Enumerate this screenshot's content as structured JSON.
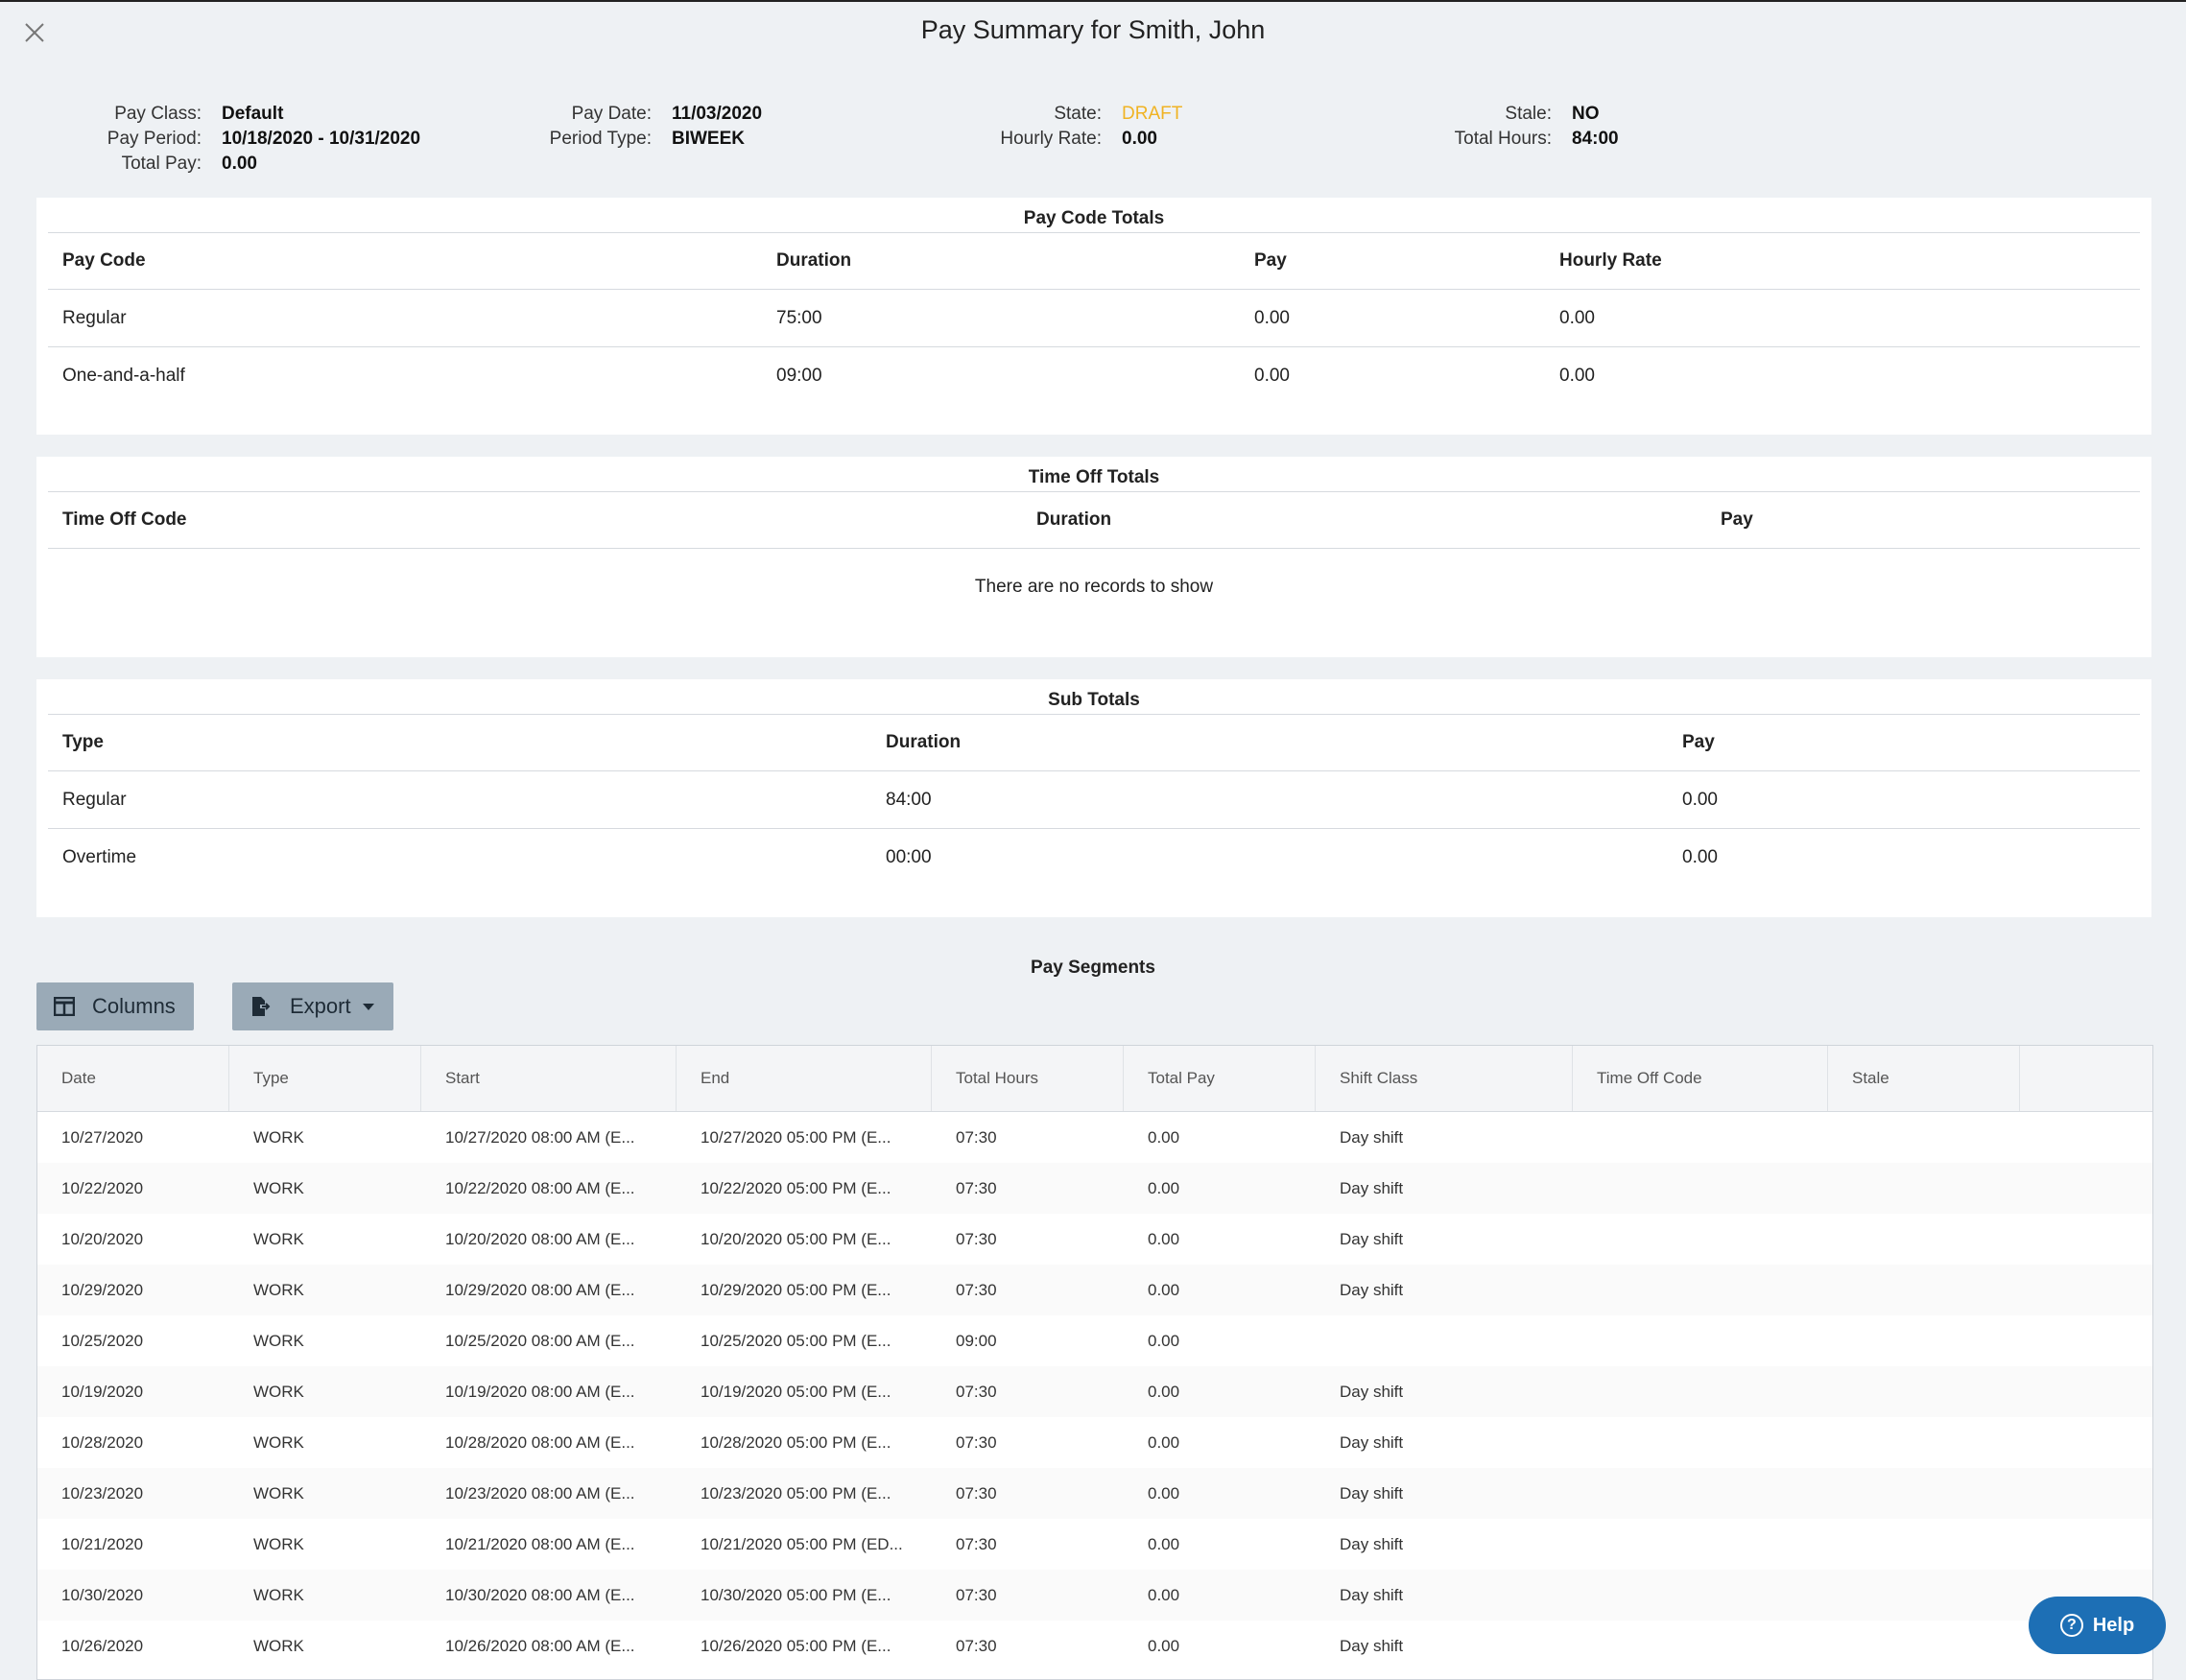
{
  "title": "Pay Summary for Smith, John",
  "summary": {
    "pay_class_label": "Pay Class:",
    "pay_class": "Default",
    "pay_period_label": "Pay Period:",
    "pay_period": "10/18/2020 - 10/31/2020",
    "total_pay_label": "Total Pay:",
    "total_pay": "0.00",
    "pay_date_label": "Pay Date:",
    "pay_date": "11/03/2020",
    "period_type_label": "Period Type:",
    "period_type": "BIWEEK",
    "state_label": "State:",
    "state": "DRAFT",
    "hourly_rate_label": "Hourly Rate:",
    "hourly_rate": "0.00",
    "stale_label": "Stale:",
    "stale": "NO",
    "total_hours_label": "Total Hours:",
    "total_hours": "84:00",
    "state_color": "#f0b323"
  },
  "pay_code_totals": {
    "title": "Pay Code Totals",
    "headers": [
      "Pay Code",
      "Duration",
      "Pay",
      "Hourly Rate"
    ],
    "rows": [
      [
        "Regular",
        "75:00",
        "0.00",
        "0.00"
      ],
      [
        "One-and-a-half",
        "09:00",
        "0.00",
        "0.00"
      ]
    ]
  },
  "time_off_totals": {
    "title": "Time Off Totals",
    "headers": [
      "Time Off Code",
      "Duration",
      "Pay"
    ],
    "empty_text": "There are no records to show"
  },
  "sub_totals": {
    "title": "Sub Totals",
    "headers": [
      "Type",
      "Duration",
      "Pay"
    ],
    "rows": [
      [
        "Regular",
        "84:00",
        "0.00"
      ],
      [
        "Overtime",
        "00:00",
        "0.00"
      ]
    ]
  },
  "pay_segments": {
    "title": "Pay Segments",
    "columns_button": "Columns",
    "export_button": "Export",
    "headers": [
      "Date",
      "Type",
      "Start",
      "End",
      "Total Hours",
      "Total Pay",
      "Shift Class",
      "Time Off Code",
      "Stale"
    ],
    "rows": [
      [
        "10/27/2020",
        "WORK",
        "10/27/2020 08:00 AM (E...",
        "10/27/2020 05:00 PM (E...",
        "07:30",
        "0.00",
        "Day shift",
        "",
        ""
      ],
      [
        "10/22/2020",
        "WORK",
        "10/22/2020 08:00 AM (E...",
        "10/22/2020 05:00 PM (E...",
        "07:30",
        "0.00",
        "Day shift",
        "",
        ""
      ],
      [
        "10/20/2020",
        "WORK",
        "10/20/2020 08:00 AM (E...",
        "10/20/2020 05:00 PM (E...",
        "07:30",
        "0.00",
        "Day shift",
        "",
        ""
      ],
      [
        "10/29/2020",
        "WORK",
        "10/29/2020 08:00 AM (E...",
        "10/29/2020 05:00 PM (E...",
        "07:30",
        "0.00",
        "Day shift",
        "",
        ""
      ],
      [
        "10/25/2020",
        "WORK",
        "10/25/2020 08:00 AM (E...",
        "10/25/2020 05:00 PM (E...",
        "09:00",
        "0.00",
        "",
        "",
        ""
      ],
      [
        "10/19/2020",
        "WORK",
        "10/19/2020 08:00 AM (E...",
        "10/19/2020 05:00 PM (E...",
        "07:30",
        "0.00",
        "Day shift",
        "",
        ""
      ],
      [
        "10/28/2020",
        "WORK",
        "10/28/2020 08:00 AM (E...",
        "10/28/2020 05:00 PM (E...",
        "07:30",
        "0.00",
        "Day shift",
        "",
        ""
      ],
      [
        "10/23/2020",
        "WORK",
        "10/23/2020 08:00 AM (E...",
        "10/23/2020 05:00 PM (E...",
        "07:30",
        "0.00",
        "Day shift",
        "",
        ""
      ],
      [
        "10/21/2020",
        "WORK",
        "10/21/2020 08:00 AM (E...",
        "10/21/2020 05:00 PM (ED...",
        "07:30",
        "0.00",
        "Day shift",
        "",
        ""
      ],
      [
        "10/30/2020",
        "WORK",
        "10/30/2020 08:00 AM (E...",
        "10/30/2020 05:00 PM (E...",
        "07:30",
        "0.00",
        "Day shift",
        "",
        ""
      ],
      [
        "10/26/2020",
        "WORK",
        "10/26/2020 08:00 AM (E...",
        "10/26/2020 05:00 PM (E...",
        "07:30",
        "0.00",
        "Day shift",
        "",
        ""
      ]
    ]
  },
  "help_button": "Help",
  "icons": {
    "close": "close-icon",
    "columns": "columns-icon",
    "export": "export-icon",
    "help": "help-icon"
  }
}
